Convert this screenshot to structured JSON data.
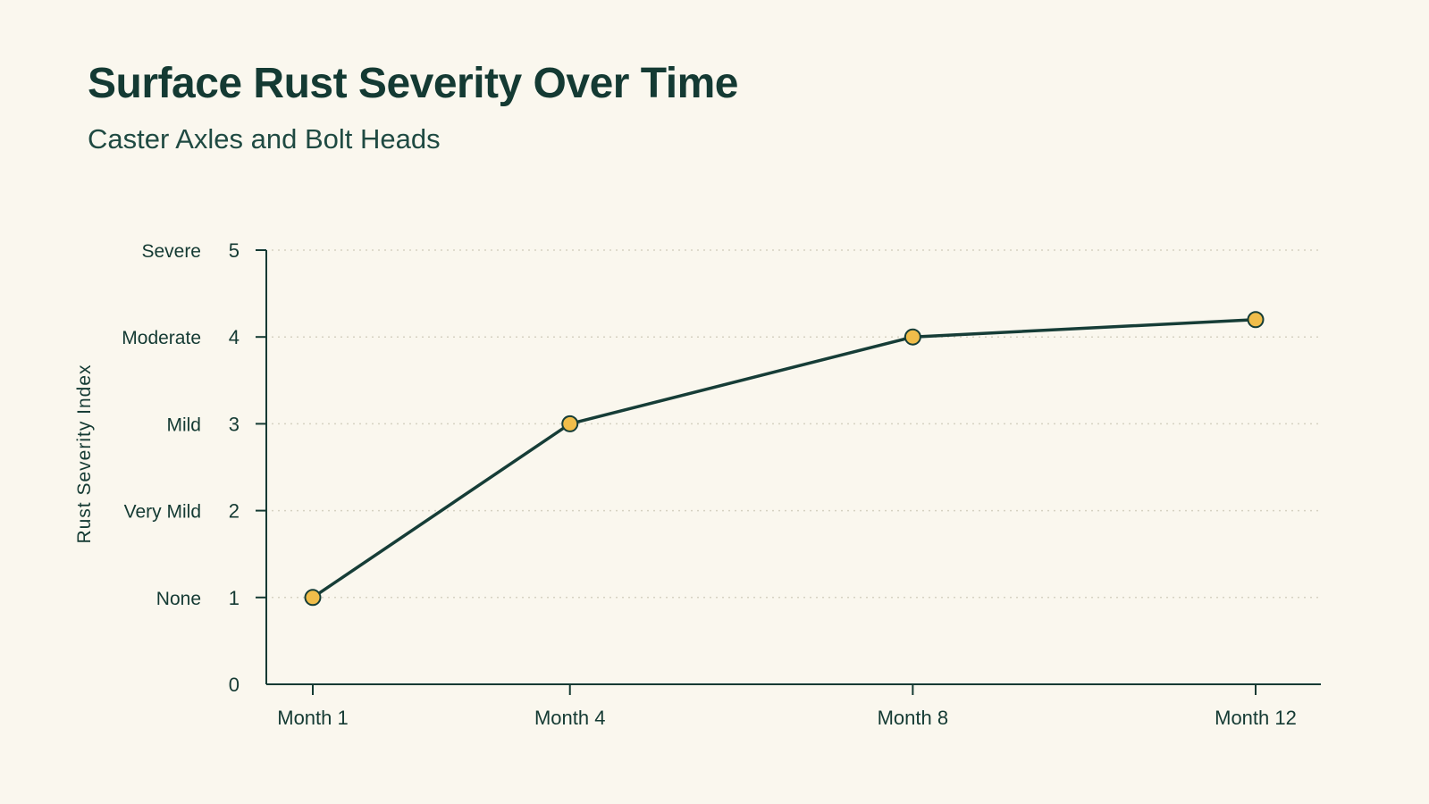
{
  "title": "Surface Rust Severity Over Time",
  "subtitle": "Caster Axles and Bolt Heads",
  "colors": {
    "background": "#faf7ee",
    "text": "#143a33",
    "line": "#163d37",
    "marker_fill": "#f0bd4a",
    "marker_stroke": "#163d37",
    "gridline": "#d6d2c2"
  },
  "chart_data": {
    "type": "line",
    "title": "Surface Rust Severity Over Time",
    "subtitle": "Caster Axles and Bolt Heads",
    "xlabel": "",
    "ylabel": "Rust Severity Index",
    "categories": [
      "Month 1",
      "Month 4",
      "Month 8",
      "Month 12"
    ],
    "x": [
      1,
      4,
      8,
      12
    ],
    "series": [
      {
        "values": [
          1,
          3,
          4,
          4.2
        ]
      }
    ],
    "ylim": [
      0,
      5
    ],
    "yticks": [
      0,
      1,
      2,
      3,
      4,
      5
    ],
    "ytick_category_labels": [
      {
        "value": 1,
        "label": "None"
      },
      {
        "value": 2,
        "label": "Very Mild"
      },
      {
        "value": 3,
        "label": "Mild"
      },
      {
        "value": 4,
        "label": "Moderate"
      },
      {
        "value": 5,
        "label": "Severe"
      }
    ],
    "grid": "horizontal dotted",
    "legend": "none"
  }
}
